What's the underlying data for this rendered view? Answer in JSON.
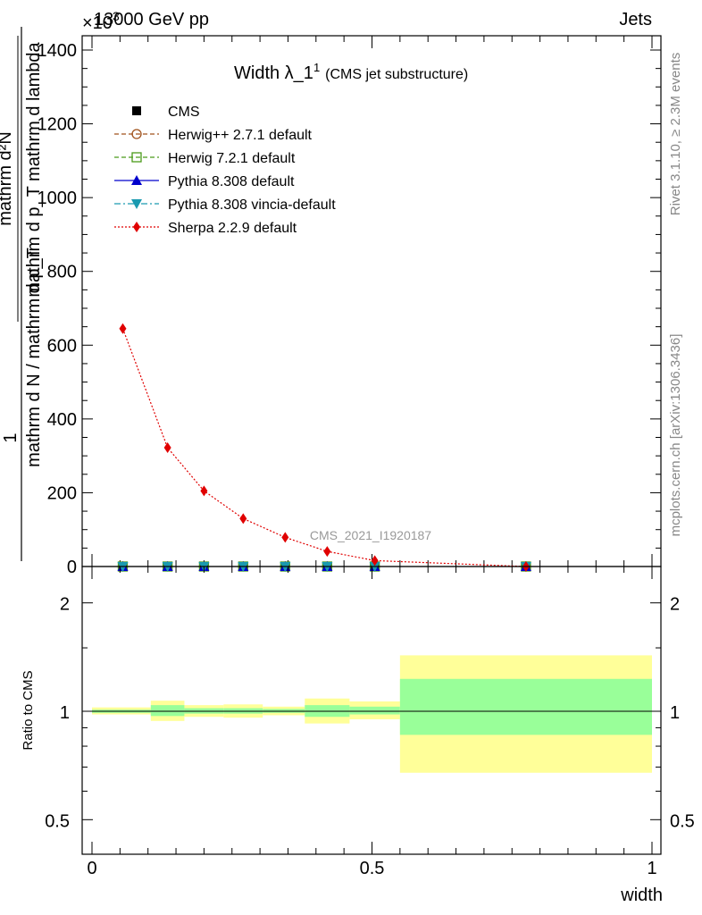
{
  "header": {
    "energy": "13000 GeV pp",
    "process": "Jets",
    "exponent": "×10",
    "exponent_power": "3"
  },
  "side": {
    "rivet": "Rivet 3.1.10, ≥ 2.3M events",
    "mcplots": "mcplots.cern.ch [arXiv:1306.3436]"
  },
  "watermark": "CMS_2021_I1920187",
  "chart_data": [
    {
      "type": "line",
      "title": "Width λ_1",
      "title_sup": "1",
      "subtitle": "(CMS jet substructure)",
      "ylabel_num": "1",
      "ylabel_den": "mathrm d N / mathrm d p_T",
      "ylabel_frac_num": "mathrm d²N",
      "ylabel_frac_den": "mathrm d p_T mathrm d lambda",
      "y_multiplier": 1000,
      "xlim": [
        0,
        1
      ],
      "ylim": [
        0,
        1400
      ],
      "yticks": [
        0,
        200,
        400,
        600,
        800,
        1000,
        1200,
        1400
      ],
      "yticklabels": [
        "0",
        "200",
        "400",
        "600",
        "800",
        "1000",
        "1200",
        "1400"
      ],
      "legend": [
        {
          "label": "CMS",
          "color": "#000000",
          "marker": "square-filled",
          "line": "none"
        },
        {
          "label": "Herwig++ 2.7.1 default",
          "color": "#a0521c",
          "marker": "circle-open",
          "line": "dashed"
        },
        {
          "label": "Herwig 7.2.1 default",
          "color": "#4a9a1a",
          "marker": "square-open",
          "line": "dashed"
        },
        {
          "label": "Pythia 8.308 default",
          "color": "#0000cc",
          "marker": "triangle-up",
          "line": "solid"
        },
        {
          "label": "Pythia 8.308 vincia-default",
          "color": "#1a9ab0",
          "marker": "triangle-down",
          "line": "dashdot"
        },
        {
          "label": "Sherpa 2.2.9 default",
          "color": "#e00000",
          "marker": "diamond",
          "line": "dotted"
        }
      ],
      "cms_x": [
        0.055,
        0.135,
        0.2,
        0.27,
        0.345,
        0.42,
        0.505,
        0.775
      ],
      "sherpa": {
        "name": "Sherpa 2.2.9 default",
        "x": [
          0.055,
          0.135,
          0.2,
          0.27,
          0.345,
          0.42,
          0.505,
          0.775
        ],
        "y": [
          645,
          322,
          205,
          130,
          79,
          41,
          16,
          0
        ]
      },
      "other_mc_y": [
        0,
        0,
        0,
        0,
        0,
        0,
        0,
        0
      ]
    },
    {
      "type": "area",
      "ylabel": "Ratio to CMS",
      "xlabel": "width",
      "xlim": [
        0,
        1
      ],
      "ylim": [
        0.42,
        2.4
      ],
      "log_y": true,
      "yticks": [
        0.5,
        1,
        2
      ],
      "yticklabels": [
        "0.5",
        "1",
        "2"
      ],
      "xticks": [
        0,
        0.5,
        1
      ],
      "xticklabels": [
        "0",
        "0.5",
        "1"
      ],
      "band_colors": {
        "inner": "#99ff99",
        "outer": "#ffff99"
      },
      "bins": [
        {
          "lo": 0.0,
          "hi": 0.105,
          "in_lo": 0.99,
          "in_hi": 1.01,
          "out_lo": 0.98,
          "out_hi": 1.025
        },
        {
          "lo": 0.105,
          "hi": 0.165,
          "in_lo": 0.97,
          "in_hi": 1.04,
          "out_lo": 0.94,
          "out_hi": 1.07
        },
        {
          "lo": 0.165,
          "hi": 0.235,
          "in_lo": 0.985,
          "in_hi": 1.02,
          "out_lo": 0.965,
          "out_hi": 1.04
        },
        {
          "lo": 0.235,
          "hi": 0.305,
          "in_lo": 0.985,
          "in_hi": 1.02,
          "out_lo": 0.96,
          "out_hi": 1.045
        },
        {
          "lo": 0.305,
          "hi": 0.38,
          "in_lo": 0.99,
          "in_hi": 1.015,
          "out_lo": 0.975,
          "out_hi": 1.03
        },
        {
          "lo": 0.38,
          "hi": 0.46,
          "in_lo": 0.965,
          "in_hi": 1.04,
          "out_lo": 0.925,
          "out_hi": 1.085
        },
        {
          "lo": 0.46,
          "hi": 0.55,
          "in_lo": 0.98,
          "in_hi": 1.03,
          "out_lo": 0.95,
          "out_hi": 1.065
        },
        {
          "lo": 0.55,
          "hi": 1.0,
          "in_lo": 0.86,
          "in_hi": 1.23,
          "out_lo": 0.675,
          "out_hi": 1.43
        }
      ]
    }
  ]
}
